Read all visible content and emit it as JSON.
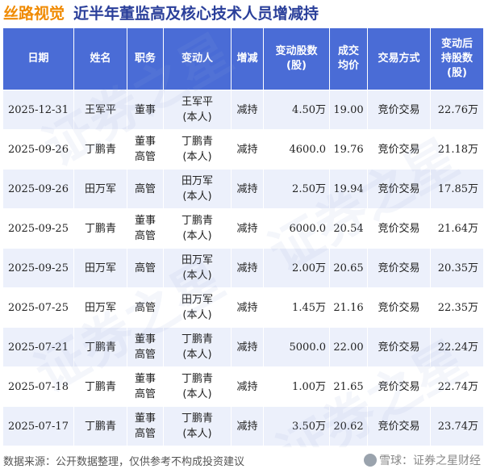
{
  "header": {
    "brand": "丝路视觉",
    "title": "近半年董监高及核心技术人员增减持"
  },
  "table": {
    "columns": {
      "date": "日期",
      "name": "姓名",
      "position": "职务",
      "changer_line1": "变动人",
      "direction": "增减",
      "shares_line1": "变动股数",
      "shares_line2": "(股)",
      "price_line1": "成交",
      "price_line2": "均价",
      "method": "交易方式",
      "holdings_line1": "变动后",
      "holdings_line2": "持股数",
      "holdings_line3": "(股)"
    },
    "rows": [
      {
        "date": "2025-12-31",
        "name": "王军平",
        "position_1": "董事",
        "position_2": "",
        "changer_1": "王军平",
        "changer_2": "(本人)",
        "direction": "减持",
        "shares": "4.50万",
        "price": "19.00",
        "method": "竞价交易",
        "holdings": "22.76万"
      },
      {
        "date": "2025-09-26",
        "name": "丁鹏青",
        "position_1": "董事",
        "position_2": "高管",
        "changer_1": "丁鹏青",
        "changer_2": "(本人)",
        "direction": "减持",
        "shares": "4600.0",
        "price": "19.76",
        "method": "竞价交易",
        "holdings": "21.18万"
      },
      {
        "date": "2025-09-26",
        "name": "田万军",
        "position_1": "高管",
        "position_2": "",
        "changer_1": "田万军",
        "changer_2": "(本人)",
        "direction": "减持",
        "shares": "2.50万",
        "price": "19.94",
        "method": "竞价交易",
        "holdings": "17.85万"
      },
      {
        "date": "2025-09-25",
        "name": "丁鹏青",
        "position_1": "董事",
        "position_2": "高管",
        "changer_1": "丁鹏青",
        "changer_2": "(本人)",
        "direction": "减持",
        "shares": "6000.0",
        "price": "20.54",
        "method": "竞价交易",
        "holdings": "21.64万"
      },
      {
        "date": "2025-09-25",
        "name": "田万军",
        "position_1": "高管",
        "position_2": "",
        "changer_1": "田万军",
        "changer_2": "(本人)",
        "direction": "减持",
        "shares": "2.00万",
        "price": "20.65",
        "method": "竞价交易",
        "holdings": "20.35万"
      },
      {
        "date": "2025-07-25",
        "name": "田万军",
        "position_1": "高管",
        "position_2": "",
        "changer_1": "田万军",
        "changer_2": "(本人)",
        "direction": "减持",
        "shares": "1.45万",
        "price": "21.16",
        "method": "竞价交易",
        "holdings": "22.35万"
      },
      {
        "date": "2025-07-21",
        "name": "丁鹏青",
        "position_1": "董事",
        "position_2": "高管",
        "changer_1": "丁鹏青",
        "changer_2": "(本人)",
        "direction": "减持",
        "shares": "5000.0",
        "price": "22.00",
        "method": "竞价交易",
        "holdings": "22.24万"
      },
      {
        "date": "2025-07-18",
        "name": "丁鹏青",
        "position_1": "董事",
        "position_2": "高管",
        "changer_1": "丁鹏青",
        "changer_2": "(本人)",
        "direction": "减持",
        "shares": "1.00万",
        "price": "21.65",
        "method": "竞价交易",
        "holdings": "22.74万"
      },
      {
        "date": "2025-07-17",
        "name": "丁鹏青",
        "position_1": "董事",
        "position_2": "高管",
        "changer_1": "丁鹏青",
        "changer_2": "(本人)",
        "direction": "减持",
        "shares": "3.50万",
        "price": "20.62",
        "method": "竞价交易",
        "holdings": "23.74万"
      }
    ]
  },
  "footer": {
    "source": "数据来源：公开数据整理，仅供参考不构成投资建议",
    "logo_text": "雪球：证券之星财经"
  },
  "watermark": "证券之星",
  "colors": {
    "header_bg": "#4a6cd6",
    "brand": "#f08a00",
    "title": "#2a3f9a",
    "decrease": "#2aa336",
    "stripe": "#ecf0fb"
  }
}
